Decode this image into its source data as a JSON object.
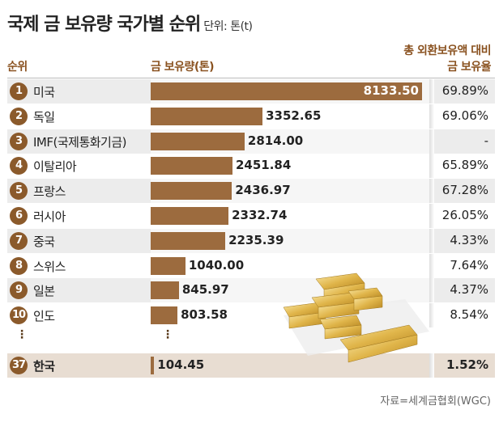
{
  "title": "국제 금 보유량 국가별 순위",
  "unit": "단위: 톤(t)",
  "headers": {
    "rank": "순위",
    "holdings": "금 보유량(톤)",
    "ratio_line1": "총 외환보유액 대비",
    "ratio_line2": "금 보유율"
  },
  "source": "자료=세계금협회(WGC)",
  "ellipsis": "⋮",
  "colors": {
    "bar": "#9c6b3e",
    "badge": "#8b5a2b",
    "header": "#8a5220",
    "highlight": "#e8ddd2"
  },
  "chart_data": {
    "type": "bar",
    "title": "국제 금 보유량 국가별 순위",
    "orientation": "horizontal",
    "xlim": [
      0,
      8133.5
    ],
    "rows": [
      {
        "rank": "1",
        "country": "미국",
        "value": "8133.50",
        "ratio": "69.89%"
      },
      {
        "rank": "2",
        "country": "독일",
        "value": "3352.65",
        "ratio": "69.06%"
      },
      {
        "rank": "3",
        "country": "IMF(국제통화기금)",
        "value": "2814.00",
        "ratio": "-"
      },
      {
        "rank": "4",
        "country": "이탈리아",
        "value": "2451.84",
        "ratio": "65.89%"
      },
      {
        "rank": "5",
        "country": "프랑스",
        "value": "2436.97",
        "ratio": "67.28%"
      },
      {
        "rank": "6",
        "country": "러시아",
        "value": "2332.74",
        "ratio": "26.05%"
      },
      {
        "rank": "7",
        "country": "중국",
        "value": "2235.39",
        "ratio": "4.33%"
      },
      {
        "rank": "8",
        "country": "스위스",
        "value": "1040.00",
        "ratio": "7.64%"
      },
      {
        "rank": "9",
        "country": "일본",
        "value": "845.97",
        "ratio": "4.37%"
      },
      {
        "rank": "10",
        "country": "인도",
        "value": "803.58",
        "ratio": "8.54%"
      }
    ],
    "highlight": {
      "rank": "37",
      "country": "한국",
      "value": "104.45",
      "ratio": "1.52%"
    }
  }
}
